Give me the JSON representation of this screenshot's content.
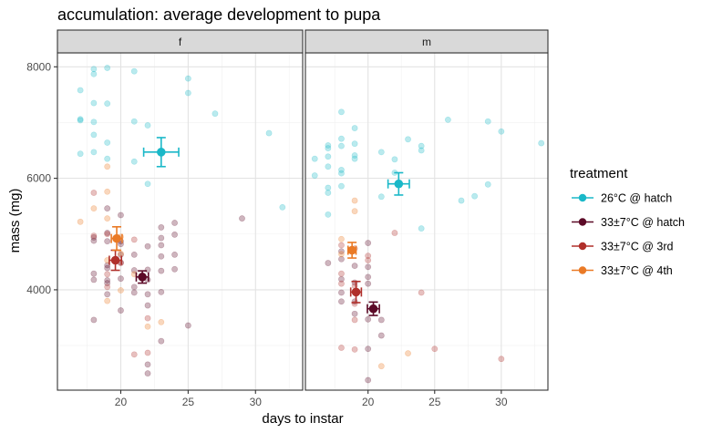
{
  "chart_data": {
    "type": "scatter",
    "title": "accumulation: average development to pupa",
    "xlabel": "days to instar",
    "ylabel": "mass (mg)",
    "x_range": [
      15.3,
      33.5
    ],
    "y_range": [
      2200,
      8250
    ],
    "x_ticks": [
      20,
      25,
      30
    ],
    "y_ticks": [
      4000,
      6000,
      8000
    ],
    "grid": true,
    "legend": {
      "title": "treatment",
      "placement": "right",
      "entries": [
        {
          "label": "26°C @ hatch",
          "color": "#1ab8c8"
        },
        {
          "label": "33±7°C @ hatch",
          "color": "#5c0a27"
        },
        {
          "label": "33±7°C @ 3rd",
          "color": "#b0302b"
        },
        {
          "label": "33±7°C @ 4th",
          "color": "#ea7a26"
        }
      ]
    },
    "facets": [
      {
        "label": "f",
        "points": {
          "26°C @ hatch": [
            [
              17,
              7580
            ],
            [
              17,
              7060
            ],
            [
              17,
              7040
            ],
            [
              17,
              6440
            ],
            [
              18,
              7960
            ],
            [
              18,
              7870
            ],
            [
              18,
              7350
            ],
            [
              18,
              7010
            ],
            [
              18,
              6780
            ],
            [
              18,
              6470
            ],
            [
              19,
              7980
            ],
            [
              19,
              7340
            ],
            [
              19,
              6640
            ],
            [
              19,
              6350
            ],
            [
              21,
              7920
            ],
            [
              21,
              7020
            ],
            [
              21,
              6300
            ],
            [
              22,
              6950
            ],
            [
              22,
              5900
            ],
            [
              25,
              7790
            ],
            [
              25,
              7530
            ],
            [
              27,
              7160
            ],
            [
              31,
              6810
            ],
            [
              32,
              5480
            ]
          ],
          "33±7°C @ hatch": [
            [
              18,
              4940
            ],
            [
              18,
              4880
            ],
            [
              18,
              4290
            ],
            [
              18,
              4180
            ],
            [
              18,
              3460
            ],
            [
              19,
              5460
            ],
            [
              19,
              5020
            ],
            [
              19,
              4870
            ],
            [
              19,
              4440
            ],
            [
              19,
              4390
            ],
            [
              19,
              4170
            ],
            [
              19,
              4120
            ],
            [
              19,
              3920
            ],
            [
              20,
              5340
            ],
            [
              20,
              4870
            ],
            [
              20,
              4820
            ],
            [
              20,
              4630
            ],
            [
              20,
              4490
            ],
            [
              20,
              4200
            ],
            [
              20,
              3630
            ],
            [
              21,
              4630
            ],
            [
              21,
              4350
            ],
            [
              21,
              4050
            ],
            [
              21,
              3950
            ],
            [
              22,
              4780
            ],
            [
              22,
              4360
            ],
            [
              22,
              4180
            ],
            [
              22,
              3920
            ],
            [
              22,
              3720
            ],
            [
              22,
              2660
            ],
            [
              22,
              2500
            ],
            [
              23,
              5120
            ],
            [
              23,
              4930
            ],
            [
              23,
              4800
            ],
            [
              23,
              4600
            ],
            [
              23,
              4340
            ],
            [
              23,
              3960
            ],
            [
              23,
              3080
            ],
            [
              24,
              5200
            ],
            [
              24,
              4990
            ],
            [
              24,
              4630
            ],
            [
              24,
              4370
            ],
            [
              25,
              3360
            ],
            [
              29,
              5280
            ]
          ],
          "33±7°C @ 3rd": [
            [
              18,
              5740
            ],
            [
              18,
              4970
            ],
            [
              19,
              5000
            ],
            [
              19,
              4280
            ],
            [
              19,
              4050
            ],
            [
              20,
              4480
            ],
            [
              21,
              4900
            ],
            [
              21,
              2840
            ],
            [
              22,
              3490
            ],
            [
              22,
              2870
            ]
          ],
          "33±7°C @ 4th": [
            [
              17,
              5220
            ],
            [
              18,
              5460
            ],
            [
              19,
              6210
            ],
            [
              19,
              5760
            ],
            [
              19,
              5280
            ],
            [
              19,
              4530
            ],
            [
              19,
              3800
            ],
            [
              20,
              4950
            ],
            [
              20,
              4650
            ],
            [
              20,
              3990
            ],
            [
              21,
              4280
            ],
            [
              22,
              3340
            ],
            [
              23,
              3420
            ]
          ]
        },
        "means": {
          "26°C @ hatch": {
            "x": 23.0,
            "y": 6470,
            "xerr": 1.3,
            "yerr": 260
          },
          "33±7°C @ hatch": {
            "x": 21.6,
            "y": 4230,
            "xerr": 0.45,
            "yerr": 110
          },
          "33±7°C @ 3rd": {
            "x": 19.6,
            "y": 4530,
            "xerr": 0.45,
            "yerr": 180
          },
          "33±7°C @ 4th": {
            "x": 19.7,
            "y": 4920,
            "xerr": 0.4,
            "yerr": 210
          }
        }
      },
      {
        "label": "m",
        "points": {
          "26°C @ hatch": [
            [
              16,
              6350
            ],
            [
              16,
              6050
            ],
            [
              17,
              6590
            ],
            [
              17,
              6540
            ],
            [
              17,
              6390
            ],
            [
              17,
              6210
            ],
            [
              17,
              5830
            ],
            [
              17,
              5740
            ],
            [
              17,
              5350
            ],
            [
              18,
              7190
            ],
            [
              18,
              6710
            ],
            [
              18,
              6580
            ],
            [
              18,
              6150
            ],
            [
              18,
              6090
            ],
            [
              18,
              5860
            ],
            [
              19,
              6900
            ],
            [
              19,
              6620
            ],
            [
              19,
              6410
            ],
            [
              19,
              6350
            ],
            [
              21,
              6470
            ],
            [
              21,
              5670
            ],
            [
              22,
              6340
            ],
            [
              22,
              6100
            ],
            [
              23,
              6700
            ],
            [
              24,
              6580
            ],
            [
              24,
              6500
            ],
            [
              24,
              5100
            ],
            [
              26,
              7050
            ],
            [
              27,
              5600
            ],
            [
              28,
              5680
            ],
            [
              29,
              7020
            ],
            [
              29,
              5890
            ],
            [
              30,
              6840
            ],
            [
              33,
              6630
            ]
          ],
          "33±7°C @ hatch": [
            [
              17,
              4480
            ],
            [
              18,
              4690
            ],
            [
              18,
              4550
            ],
            [
              18,
              4190
            ],
            [
              18,
              3950
            ],
            [
              18,
              3790
            ],
            [
              19,
              4430
            ],
            [
              19,
              4130
            ],
            [
              19,
              3790
            ],
            [
              19,
              3570
            ],
            [
              20,
              4840
            ],
            [
              20,
              4410
            ],
            [
              20,
              4230
            ],
            [
              20,
              4110
            ],
            [
              20,
              3470
            ],
            [
              20,
              2940
            ],
            [
              20,
              2380
            ],
            [
              21,
              3460
            ],
            [
              21,
              3180
            ]
          ],
          "33±7°C @ 3rd": [
            [
              18,
              4800
            ],
            [
              18,
              4290
            ],
            [
              18,
              4110
            ],
            [
              18,
              2960
            ],
            [
              19,
              4740
            ],
            [
              19,
              4070
            ],
            [
              19,
              3750
            ],
            [
              19,
              3460
            ],
            [
              19,
              2930
            ],
            [
              20,
              4610
            ],
            [
              20,
              4530
            ],
            [
              22,
              5020
            ],
            [
              24,
              3950
            ],
            [
              25,
              2940
            ],
            [
              30,
              2760
            ]
          ],
          "33±7°C @ 4th": [
            [
              18,
              4910
            ],
            [
              18,
              4640
            ],
            [
              19,
              5600
            ],
            [
              19,
              5410
            ],
            [
              21,
              2630
            ],
            [
              23,
              2860
            ]
          ]
        },
        "means": {
          "26°C @ hatch": {
            "x": 22.3,
            "y": 5900,
            "xerr": 0.8,
            "yerr": 200
          },
          "33±7°C @ hatch": {
            "x": 20.4,
            "y": 3660,
            "xerr": 0.45,
            "yerr": 120
          },
          "33±7°C @ 3rd": {
            "x": 19.1,
            "y": 3960,
            "xerr": 0.4,
            "yerr": 190
          },
          "33±7°C @ 4th": {
            "x": 18.8,
            "y": 4710,
            "xerr": 0.3,
            "yerr": 140
          }
        }
      }
    ]
  }
}
